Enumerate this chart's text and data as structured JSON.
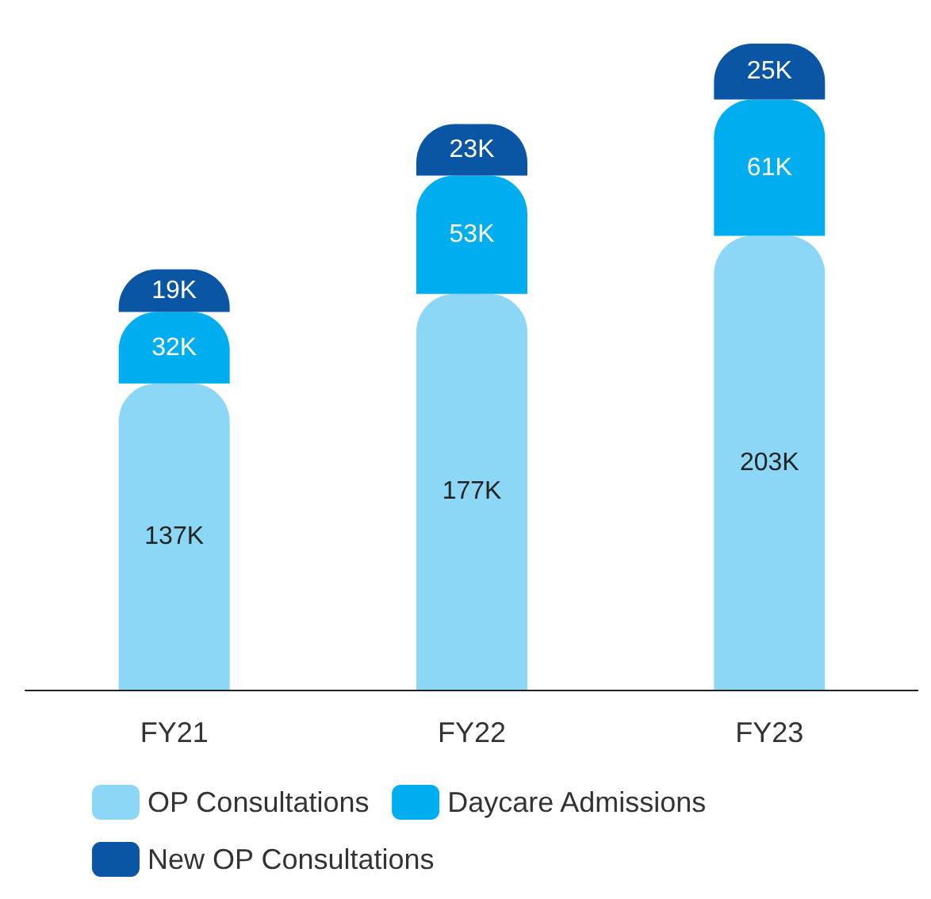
{
  "chart_data": {
    "type": "bar",
    "stacked": true,
    "categories": [
      "FY21",
      "FY22",
      "FY23"
    ],
    "series": [
      {
        "name": "OP Consultations",
        "color": "#8dd7f6",
        "values": [
          137,
          177,
          203
        ],
        "value_labels": [
          "137K",
          "177K",
          "203K"
        ]
      },
      {
        "name": "Daycare Admissions",
        "color": "#00aeef",
        "values": [
          32,
          53,
          61
        ],
        "value_labels": [
          "32K",
          "53K",
          "61K"
        ]
      },
      {
        "name": "New OP Consultations",
        "color": "#0a56a5",
        "values": [
          19,
          23,
          25
        ],
        "value_labels": [
          "19K",
          "23K",
          "25K"
        ]
      }
    ],
    "legend": "bottom left",
    "grid": false
  }
}
